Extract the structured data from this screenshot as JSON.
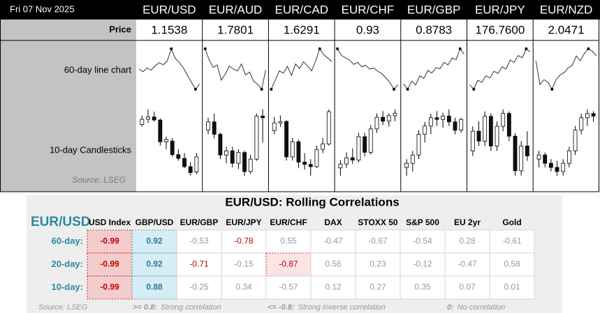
{
  "header": {
    "date": "Fri 07 Nov 2025"
  },
  "pairs": [
    "EUR/USD",
    "EUR/AUD",
    "EUR/CAD",
    "EUR/CHF",
    "EUR/GBP",
    "EUR/JPY",
    "EUR/NZD"
  ],
  "price_label": "Price",
  "prices": [
    1.1538,
    1.7801,
    1.6291,
    0.93,
    0.8783,
    176.76,
    2.0471
  ],
  "price_labels": [
    "1.1538",
    "1.7801",
    "1.6291",
    "0.93",
    "0.8783",
    "176.7600",
    "2.0471"
  ],
  "line_label": "60-day line chart",
  "candle_label": "10-day Candlesticks",
  "source_top": "Source: LSEG",
  "sparklines": [
    [
      60,
      55,
      62,
      58,
      66,
      72,
      68,
      75,
      98,
      80,
      72,
      62,
      48,
      35,
      22,
      32
    ],
    [
      92,
      70,
      55,
      60,
      30,
      42,
      58,
      52,
      48,
      62,
      40,
      46,
      28,
      22,
      12,
      50
    ],
    [
      10,
      30,
      50,
      45,
      60,
      40,
      65,
      55,
      70,
      60,
      50,
      72,
      98,
      85,
      78,
      70
    ],
    [
      95,
      80,
      75,
      70,
      60,
      65,
      55,
      58,
      50,
      52,
      45,
      40,
      30,
      20,
      5,
      15
    ],
    [
      30,
      20,
      35,
      28,
      45,
      40,
      55,
      50,
      60,
      58,
      70,
      65,
      78,
      75,
      95,
      85
    ],
    [
      15,
      5,
      25,
      20,
      35,
      30,
      45,
      40,
      55,
      50,
      70,
      65,
      80,
      75,
      95,
      88
    ],
    [
      70,
      20,
      30,
      25,
      10,
      30,
      40,
      45,
      55,
      60,
      80,
      70,
      85,
      95,
      90,
      80
    ]
  ],
  "candles": [
    [
      [
        78,
        90,
        75,
        85
      ],
      [
        85,
        98,
        80,
        88
      ],
      [
        88,
        95,
        82,
        84
      ],
      [
        84,
        86,
        50,
        55
      ],
      [
        55,
        62,
        45,
        58
      ],
      [
        56,
        60,
        35,
        38
      ],
      [
        38,
        45,
        30,
        33
      ],
      [
        33,
        40,
        20,
        22
      ],
      [
        22,
        28,
        10,
        14
      ],
      [
        15,
        40,
        12,
        35
      ]
    ],
    [
      [
        75,
        90,
        70,
        85
      ],
      [
        85,
        95,
        65,
        70
      ],
      [
        70,
        72,
        40,
        45
      ],
      [
        45,
        55,
        35,
        50
      ],
      [
        50,
        55,
        30,
        35
      ],
      [
        35,
        52,
        28,
        48
      ],
      [
        48,
        50,
        20,
        25
      ],
      [
        25,
        45,
        22,
        40
      ],
      [
        40,
        95,
        38,
        92
      ],
      [
        92,
        100,
        60,
        90
      ]
    ],
    [
      [
        70,
        88,
        65,
        80
      ],
      [
        80,
        90,
        75,
        82
      ],
      [
        82,
        84,
        30,
        35
      ],
      [
        35,
        60,
        30,
        55
      ],
      [
        55,
        58,
        20,
        28
      ],
      [
        28,
        40,
        18,
        25
      ],
      [
        25,
        32,
        10,
        22
      ],
      [
        22,
        50,
        20,
        45
      ],
      [
        45,
        60,
        40,
        52
      ],
      [
        52,
        98,
        50,
        95
      ]
    ],
    [
      [
        25,
        35,
        15,
        30
      ],
      [
        30,
        45,
        25,
        38
      ],
      [
        38,
        50,
        30,
        35
      ],
      [
        35,
        70,
        32,
        65
      ],
      [
        65,
        70,
        40,
        45
      ],
      [
        45,
        80,
        42,
        75
      ],
      [
        75,
        95,
        70,
        90
      ],
      [
        90,
        98,
        80,
        85
      ],
      [
        85,
        95,
        78,
        92
      ],
      [
        92,
        100,
        85,
        95
      ]
    ],
    [
      [
        30,
        40,
        20,
        35
      ],
      [
        35,
        50,
        25,
        45
      ],
      [
        45,
        75,
        40,
        70
      ],
      [
        70,
        85,
        60,
        80
      ],
      [
        80,
        95,
        70,
        90
      ],
      [
        90,
        98,
        80,
        88
      ],
      [
        88,
        96,
        78,
        92
      ],
      [
        92,
        100,
        80,
        85
      ],
      [
        85,
        90,
        70,
        75
      ],
      [
        75,
        90,
        72,
        88
      ]
    ],
    [
      [
        40,
        65,
        35,
        60
      ],
      [
        60,
        70,
        45,
        50
      ],
      [
        50,
        80,
        45,
        75
      ],
      [
        75,
        78,
        40,
        45
      ],
      [
        45,
        70,
        40,
        65
      ],
      [
        65,
        82,
        60,
        78
      ],
      [
        78,
        80,
        50,
        55
      ],
      [
        55,
        58,
        15,
        20
      ],
      [
        20,
        50,
        15,
        45
      ],
      [
        45,
        60,
        30,
        35
      ]
    ],
    [
      [
        40,
        50,
        30,
        45
      ],
      [
        45,
        48,
        30,
        35
      ],
      [
        35,
        40,
        25,
        30
      ],
      [
        30,
        38,
        20,
        25
      ],
      [
        25,
        40,
        20,
        35
      ],
      [
        35,
        55,
        30,
        50
      ],
      [
        50,
        80,
        45,
        75
      ],
      [
        75,
        95,
        70,
        90
      ],
      [
        90,
        100,
        80,
        95
      ],
      [
        95,
        98,
        85,
        92
      ]
    ]
  ],
  "correlations": {
    "title": "EUR/USD: Rolling Correlations",
    "base": "EUR/USD",
    "columns": [
      "USD Index",
      "GBP/USD",
      "EUR/GBP",
      "EUR/JPY",
      "EUR/CHF",
      "DAX",
      "STOXX 50",
      "S&P 500",
      "EU 2yr",
      "Gold"
    ],
    "rows": [
      {
        "label": "60-day:",
        "values": [
          -0.99,
          0.92,
          -0.53,
          -0.78,
          0.55,
          -0.47,
          -0.67,
          -0.54,
          0.28,
          -0.61
        ]
      },
      {
        "label": "20-day:",
        "values": [
          -0.99,
          0.92,
          -0.71,
          -0.15,
          -0.87,
          0.56,
          0.23,
          -0.12,
          -0.47,
          0.58
        ]
      },
      {
        "label": "10-day:",
        "values": [
          -0.99,
          0.88,
          -0.25,
          0.34,
          -0.57,
          0.12,
          0.27,
          0.35,
          0.07,
          0.01
        ]
      }
    ],
    "source": "Source: LSEG",
    "legend": [
      {
        "key": ">= 0.8:",
        "text": "Strong correlation"
      },
      {
        "key": "<= -0.8:",
        "text": "Strong inverse correlation"
      },
      {
        "key": "0:",
        "text": "No correlation"
      }
    ]
  }
}
